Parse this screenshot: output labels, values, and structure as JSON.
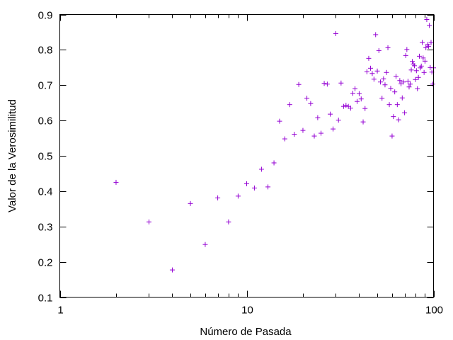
{
  "chart_data": {
    "type": "scatter",
    "title": "",
    "xlabel": "Número de Pasada",
    "ylabel": "Valor de la Verosimilitud",
    "xscale": "log",
    "xlim": [
      1,
      100
    ],
    "ylim": [
      0.1,
      0.9
    ],
    "grid": false,
    "legend": "none",
    "x_ticks": [
      {
        "value": 1,
        "label": "1"
      },
      {
        "value": 10,
        "label": "10"
      },
      {
        "value": 100,
        "label": "100"
      }
    ],
    "y_ticks": [
      {
        "value": 0.1,
        "label": "0.1"
      },
      {
        "value": 0.2,
        "label": "0.2"
      },
      {
        "value": 0.3,
        "label": "0.3"
      },
      {
        "value": 0.4,
        "label": "0.4"
      },
      {
        "value": 0.5,
        "label": "0.5"
      },
      {
        "value": 0.6,
        "label": "0.6"
      },
      {
        "value": 0.7,
        "label": "0.7"
      },
      {
        "value": 0.8,
        "label": "0.8"
      },
      {
        "value": 0.9,
        "label": "0.9"
      }
    ],
    "marker": "plus",
    "color": "#9400d3",
    "series": [
      {
        "points": [
          [
            2,
            0.425
          ],
          [
            3,
            0.313
          ],
          [
            4,
            0.177
          ],
          [
            5,
            0.365
          ],
          [
            6,
            0.249
          ],
          [
            7,
            0.381
          ],
          [
            8,
            0.313
          ],
          [
            9,
            0.386
          ],
          [
            10,
            0.421
          ],
          [
            11,
            0.409
          ],
          [
            12,
            0.462
          ],
          [
            13,
            0.412
          ],
          [
            14,
            0.48
          ],
          [
            15,
            0.598
          ],
          [
            16,
            0.548
          ],
          [
            17,
            0.645
          ],
          [
            18,
            0.561
          ],
          [
            19,
            0.702
          ],
          [
            20,
            0.572
          ],
          [
            21,
            0.663
          ],
          [
            22,
            0.648
          ],
          [
            23,
            0.556
          ],
          [
            24,
            0.608
          ],
          [
            25,
            0.564
          ],
          [
            26,
            0.705
          ],
          [
            27,
            0.703
          ],
          [
            28,
            0.618
          ],
          [
            29,
            0.576
          ],
          [
            30,
            0.846
          ],
          [
            31,
            0.601
          ],
          [
            32,
            0.706
          ],
          [
            33,
            0.64
          ],
          [
            34,
            0.643
          ],
          [
            35,
            0.64
          ],
          [
            36,
            0.635
          ],
          [
            37,
            0.677
          ],
          [
            38,
            0.69
          ],
          [
            39,
            0.654
          ],
          [
            40,
            0.676
          ],
          [
            41,
            0.661
          ],
          [
            42,
            0.596
          ],
          [
            43,
            0.634
          ],
          [
            44,
            0.738
          ],
          [
            45,
            0.776
          ],
          [
            46,
            0.748
          ],
          [
            47,
            0.733
          ],
          [
            48,
            0.717
          ],
          [
            49,
            0.843
          ],
          [
            50,
            0.74
          ],
          [
            51,
            0.798
          ],
          [
            52,
            0.709
          ],
          [
            53,
            0.663
          ],
          [
            54,
            0.718
          ],
          [
            55,
            0.701
          ],
          [
            56,
            0.736
          ],
          [
            57,
            0.806
          ],
          [
            58,
            0.645
          ],
          [
            59,
            0.691
          ],
          [
            60,
            0.556
          ],
          [
            61,
            0.611
          ],
          [
            62,
            0.681
          ],
          [
            63,
            0.725
          ],
          [
            64,
            0.645
          ],
          [
            65,
            0.602
          ],
          [
            66,
            0.713
          ],
          [
            67,
            0.704
          ],
          [
            68,
            0.664
          ],
          [
            69,
            0.709
          ],
          [
            70,
            0.622
          ],
          [
            71,
            0.784
          ],
          [
            72,
            0.801
          ],
          [
            73,
            0.711
          ],
          [
            74,
            0.695
          ],
          [
            75,
            0.703
          ],
          [
            76,
            0.743
          ],
          [
            77,
            0.767
          ],
          [
            78,
            0.76
          ],
          [
            79,
            0.755
          ],
          [
            80,
            0.716
          ],
          [
            81,
            0.741
          ],
          [
            82,
            0.69
          ],
          [
            83,
            0.722
          ],
          [
            84,
            0.782
          ],
          [
            85,
            0.749
          ],
          [
            86,
            0.754
          ],
          [
            87,
            0.821
          ],
          [
            88,
            0.777
          ],
          [
            89,
            0.736
          ],
          [
            90,
            0.768
          ],
          [
            91,
            0.806
          ],
          [
            92,
            0.886
          ],
          [
            93,
            0.815
          ],
          [
            94,
            0.81
          ],
          [
            95,
            0.869
          ],
          [
            96,
            0.75
          ],
          [
            97,
            0.821
          ],
          [
            98,
            0.737
          ],
          [
            99,
            0.703
          ],
          [
            100,
            0.749
          ]
        ]
      }
    ]
  }
}
